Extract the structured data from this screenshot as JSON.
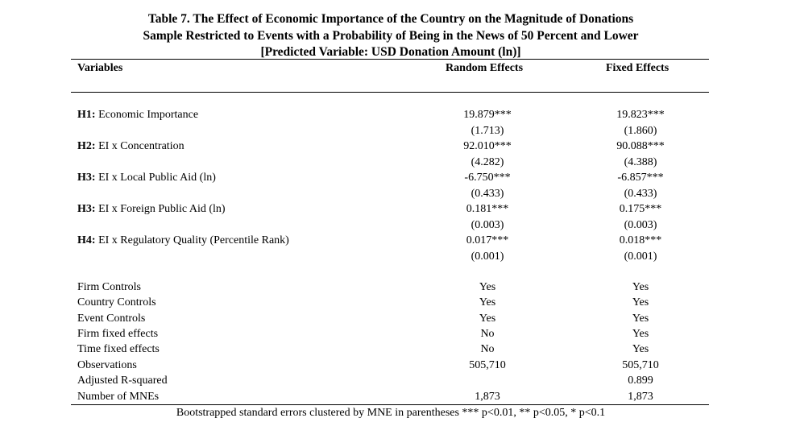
{
  "title": {
    "line1": "Table 7. The Effect of Economic Importance of the Country on the Magnitude of Donations",
    "line2": "Sample Restricted to Events with a Probability of Being in the News of 50 Percent and Lower",
    "line3": "[Predicted Variable: USD Donation Amount (ln)]"
  },
  "header": {
    "variables": "Variables",
    "random_effects": "Random Effects",
    "fixed_effects": "Fixed Effects"
  },
  "hypotheses": [
    {
      "tag": "H1:",
      "label": "Economic Importance",
      "re_coef": "19.879***",
      "re_se": "(1.713)",
      "fe_coef": "19.823***",
      "fe_se": "(1.860)"
    },
    {
      "tag": "H2:",
      "label": "EI x Concentration",
      "re_coef": "92.010***",
      "re_se": "(4.282)",
      "fe_coef": "90.088***",
      "fe_se": "(4.388)"
    },
    {
      "tag": "H3:",
      "label": "EI x Local Public Aid (ln)",
      "re_coef": "-6.750***",
      "re_se": "(0.433)",
      "fe_coef": "-6.857***",
      "fe_se": "(0.433)"
    },
    {
      "tag": "H3:",
      "label": "EI x Foreign Public Aid (ln)",
      "re_coef": "0.181***",
      "re_se": "(0.003)",
      "fe_coef": "0.175***",
      "fe_se": "(0.003)"
    },
    {
      "tag": "H4:",
      "label": "EI x Regulatory Quality (Percentile Rank)",
      "re_coef": "0.017***",
      "re_se": "(0.001)",
      "fe_coef": "0.018***",
      "fe_se": "(0.001)"
    }
  ],
  "controls": [
    {
      "label": "Firm Controls",
      "re": "Yes",
      "fe": "Yes"
    },
    {
      "label": "Country Controls",
      "re": "Yes",
      "fe": "Yes"
    },
    {
      "label": "Event Controls",
      "re": "Yes",
      "fe": "Yes"
    },
    {
      "label": "Firm fixed effects",
      "re": "No",
      "fe": "Yes"
    },
    {
      "label": "Time fixed effects",
      "re": "No",
      "fe": "Yes"
    },
    {
      "label": "Observations",
      "re": "505,710",
      "fe": "505,710"
    },
    {
      "label": "Adjusted R-squared",
      "re": "",
      "fe": "0.899"
    },
    {
      "label": "Number of MNEs",
      "re": "1,873",
      "fe": "1,873"
    }
  ],
  "note": "Bootstrapped standard errors clustered by MNE in parentheses *** p<0.01, ** p<0.05, * p<0.1"
}
